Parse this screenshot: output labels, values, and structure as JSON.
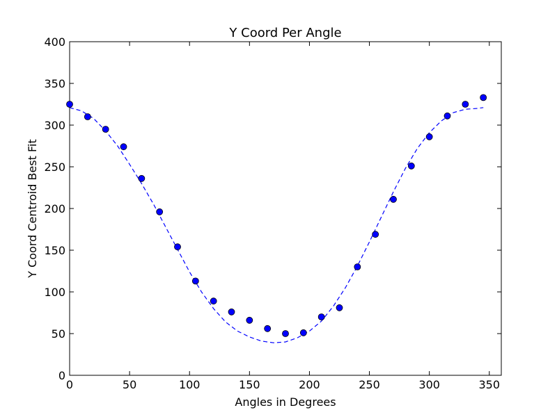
{
  "chart_data": {
    "type": "scatter",
    "title": "Y Coord Per Angle",
    "xlabel": "Angles in Degrees",
    "ylabel": "Y Coord Centroid Best Fit",
    "xlim": [
      0,
      360
    ],
    "ylim": [
      0,
      400
    ],
    "xticks": [
      0,
      50,
      100,
      150,
      200,
      250,
      300,
      350
    ],
    "yticks": [
      0,
      50,
      100,
      150,
      200,
      250,
      300,
      350,
      400
    ],
    "grid": false,
    "colors": {
      "points": "#0000ff",
      "point_edge": "#000000",
      "fit_line": "#0000ff"
    },
    "series": [
      {
        "mode": "markers",
        "x": [
          0,
          15,
          30,
          45,
          60,
          75,
          90,
          105,
          120,
          135,
          150,
          165,
          180,
          195,
          210,
          225,
          240,
          255,
          270,
          285,
          300,
          315,
          330,
          345
        ],
        "y": [
          325,
          310,
          295,
          274,
          236,
          196,
          154,
          113,
          89,
          76,
          66,
          56,
          50,
          51,
          70,
          81,
          130,
          169,
          211,
          251,
          286,
          311,
          325,
          333
        ]
      },
      {
        "mode": "dashed-line",
        "x": [
          0,
          10,
          20,
          30,
          40,
          50,
          60,
          70,
          80,
          90,
          100,
          110,
          120,
          130,
          140,
          150,
          160,
          170,
          180,
          190,
          200,
          210,
          220,
          230,
          240,
          250,
          260,
          270,
          280,
          290,
          300,
          310,
          320,
          330,
          340,
          345
        ],
        "y": [
          321,
          317,
          308,
          293,
          275,
          253,
          230,
          205,
          178,
          151,
          124,
          100,
          80,
          64,
          53,
          46,
          41,
          39,
          40,
          45,
          53,
          65,
          83,
          105,
          131,
          160,
          190,
          220,
          248,
          272,
          291,
          305,
          315,
          319,
          320,
          321
        ]
      }
    ]
  }
}
